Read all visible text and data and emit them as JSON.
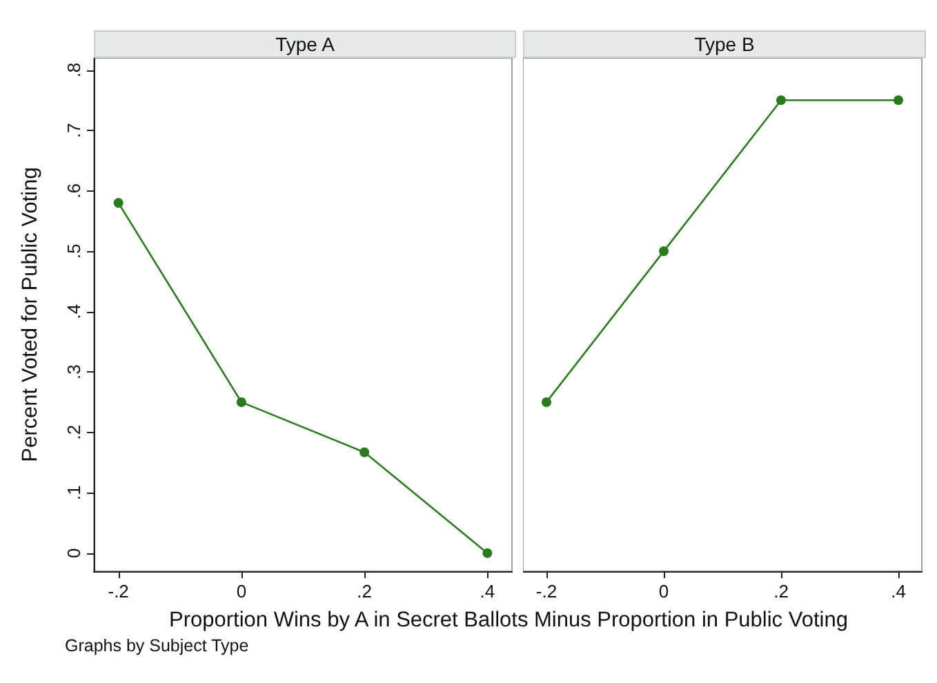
{
  "chart_data": [
    {
      "type": "line",
      "title": "Type A",
      "xlabel": "Proportion Wins by A in Secret Ballots Minus Proportion in Public Voting",
      "ylabel": "Percent Voted for Public Voting",
      "annotations": [
        "Graphs by Subject Type"
      ],
      "x": [
        -0.2,
        0,
        0.2,
        0.4
      ],
      "series": [
        {
          "color": "#2a7a1e",
          "values": [
            0.58,
            0.25,
            0.167,
            0
          ]
        }
      ],
      "xlim": [
        -0.24,
        0.44
      ],
      "xticks": [
        {
          "value": -0.2,
          "label": "-.2"
        },
        0,
        {
          "value": 0.2,
          "label": ".2"
        },
        {
          "value": 0.4,
          "label": ".4"
        }
      ],
      "ylim": [
        -0.03,
        0.82
      ],
      "yticks": [
        0,
        {
          "value": 0.1,
          "label": ".1"
        },
        {
          "value": 0.2,
          "label": ".2"
        },
        {
          "value": 0.3,
          "label": ".3"
        },
        {
          "value": 0.4,
          "label": ".4"
        },
        {
          "value": 0.5,
          "label": ".5"
        },
        {
          "value": 0.6,
          "label": ".6"
        },
        {
          "value": 0.7,
          "label": ".7"
        },
        {
          "value": 0.8,
          "label": ".8"
        }
      ],
      "marker": "circle",
      "line_style": "solid"
    },
    {
      "type": "line",
      "title": "Type B",
      "x": [
        -0.2,
        0,
        0.2,
        0.4
      ],
      "series": [
        {
          "color": "#2a7a1e",
          "values": [
            0.25,
            0.5,
            0.75,
            0.75
          ]
        }
      ],
      "xlim": [
        -0.24,
        0.44
      ],
      "xticks": [
        {
          "value": -0.2,
          "label": "-.2"
        },
        0,
        {
          "value": 0.2,
          "label": ".2"
        },
        {
          "value": 0.4,
          "label": ".4"
        }
      ],
      "ylim": [
        -0.03,
        0.82
      ],
      "tick_labels": "x",
      "marker": "circle",
      "line_style": "solid"
    }
  ]
}
